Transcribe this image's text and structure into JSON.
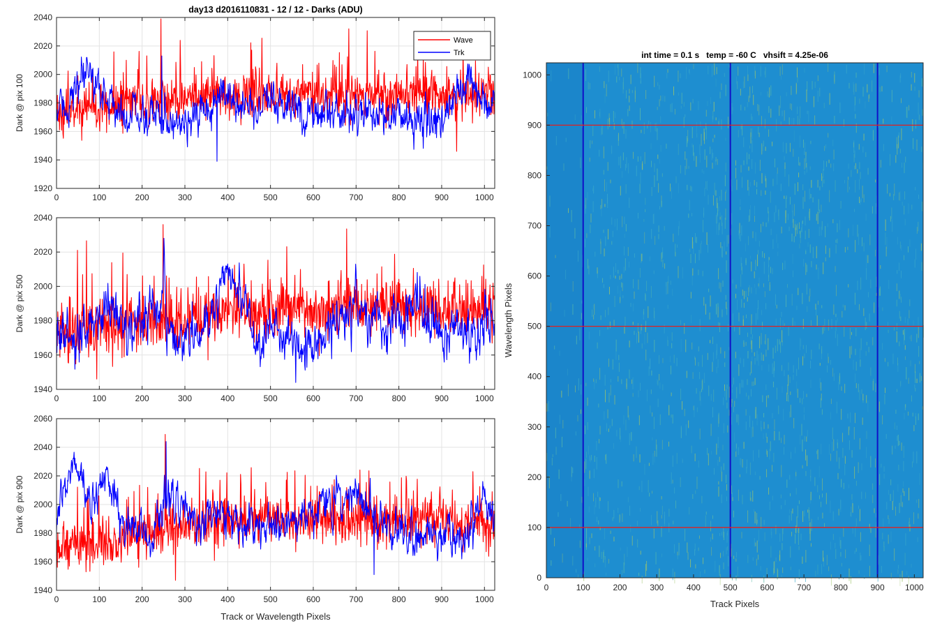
{
  "figure": {
    "suptitle": "day13 d2016110831 - 12 / 12 - Darks (ADU)"
  },
  "chart_data": [
    {
      "type": "line",
      "id": "pix100",
      "title": "day13 d2016110831 - 12 / 12 - Darks (ADU)",
      "xlabel": "",
      "ylabel": "Dark @ pix 100",
      "xlim": [
        0,
        1024
      ],
      "ylim": [
        1920,
        2040
      ],
      "xticks": [
        0,
        100,
        200,
        300,
        400,
        500,
        600,
        700,
        800,
        900,
        1000
      ],
      "yticks": [
        1920,
        1940,
        1960,
        1980,
        2000,
        2020,
        2040
      ],
      "grid": true,
      "legend": {
        "location": "top-right",
        "entries": [
          "Wave",
          "Trk"
        ]
      },
      "series": [
        {
          "name": "Wave",
          "color": "#ff0000",
          "n": 1024,
          "mean": 1983,
          "noise_sd": 12,
          "spike_max": 2039,
          "spike_min": 1946,
          "trend": [
            [
              0,
              1972
            ],
            [
              150,
              1980
            ],
            [
              400,
              1985
            ],
            [
              700,
              1986
            ],
            [
              1024,
              1986
            ]
          ]
        },
        {
          "name": "Trk",
          "color": "#0000ff",
          "n": 1024,
          "mean": 1973,
          "noise_sd": 6,
          "spike_max": 2013,
          "spike_min": 1939,
          "trend": [
            [
              0,
              1972
            ],
            [
              40,
              1985
            ],
            [
              80,
              2001
            ],
            [
              110,
              1985
            ],
            [
              160,
              1972
            ],
            [
              350,
              1968
            ],
            [
              390,
              1990
            ],
            [
              430,
              1978
            ],
            [
              700,
              1973
            ],
            [
              900,
              1968
            ],
            [
              960,
              1992
            ],
            [
              1000,
              1985
            ],
            [
              1024,
              1976
            ]
          ]
        }
      ]
    },
    {
      "type": "line",
      "id": "pix500",
      "xlabel": "",
      "ylabel": "Dark @ pix 500",
      "xlim": [
        0,
        1024
      ],
      "ylim": [
        1940,
        2040
      ],
      "xticks": [
        0,
        100,
        200,
        300,
        400,
        500,
        600,
        700,
        800,
        900,
        1000
      ],
      "yticks": [
        1940,
        1960,
        1980,
        2000,
        2020,
        2040
      ],
      "grid": true,
      "series": [
        {
          "name": "Wave",
          "color": "#ff0000",
          "n": 1024,
          "mean": 1982,
          "noise_sd": 12,
          "spike_max": 2036,
          "spike_min": 1946,
          "trend": [
            [
              0,
              1972
            ],
            [
              200,
              1978
            ],
            [
              400,
              1986
            ],
            [
              700,
              1988
            ],
            [
              1024,
              1986
            ]
          ]
        },
        {
          "name": "Trk",
          "color": "#0000ff",
          "n": 1024,
          "mean": 1975,
          "noise_sd": 6,
          "spike_max": 2028,
          "spike_min": 1944,
          "trend": [
            [
              0,
              1974
            ],
            [
              60,
              1965
            ],
            [
              120,
              1992
            ],
            [
              170,
              1972
            ],
            [
              240,
              1992
            ],
            [
              280,
              1968
            ],
            [
              360,
              1975
            ],
            [
              395,
              2015
            ],
            [
              430,
              1995
            ],
            [
              470,
              1972
            ],
            [
              600,
              1965
            ],
            [
              700,
              1990
            ],
            [
              770,
              1972
            ],
            [
              840,
              1990
            ],
            [
              900,
              1975
            ],
            [
              1024,
              1975
            ]
          ]
        }
      ]
    },
    {
      "type": "line",
      "id": "pix900",
      "xlabel": "Track or Wavelength Pixels",
      "ylabel": "Dark @ pix 900",
      "xlim": [
        0,
        1024
      ],
      "ylim": [
        1940,
        2060
      ],
      "xticks": [
        0,
        100,
        200,
        300,
        400,
        500,
        600,
        700,
        800,
        900,
        1000
      ],
      "yticks": [
        1940,
        1960,
        1980,
        2000,
        2020,
        2040,
        2060
      ],
      "grid": true,
      "series": [
        {
          "name": "Wave",
          "color": "#ff0000",
          "n": 1024,
          "mean": 1983,
          "noise_sd": 12,
          "spike_max": 2049,
          "spike_min": 1947,
          "trend": [
            [
              0,
              1970
            ],
            [
              200,
              1978
            ],
            [
              400,
              1990
            ],
            [
              700,
              1990
            ],
            [
              1024,
              1987
            ]
          ]
        },
        {
          "name": "Trk",
          "color": "#0000ff",
          "n": 1024,
          "mean": 1988,
          "noise_sd": 6,
          "spike_max": 2044,
          "spike_min": 1951,
          "trend": [
            [
              0,
              1985
            ],
            [
              40,
              2032
            ],
            [
              80,
              2000
            ],
            [
              115,
              2020
            ],
            [
              160,
              1985
            ],
            [
              220,
              1978
            ],
            [
              265,
              2010
            ],
            [
              320,
              1985
            ],
            [
              385,
              2000
            ],
            [
              430,
              1980
            ],
            [
              560,
              1990
            ],
            [
              700,
              2010
            ],
            [
              760,
              1985
            ],
            [
              850,
              1980
            ],
            [
              960,
              1975
            ],
            [
              1000,
              2005
            ],
            [
              1024,
              1985
            ]
          ]
        }
      ]
    },
    {
      "type": "heatmap",
      "id": "image",
      "title": "int time = 0.1 s   temp = -60 C   vhsift = 4.25e-06",
      "xlabel": "Track Pixels",
      "ylabel": "Wavelength Pixels",
      "xlim": [
        0,
        1024
      ],
      "ylim": [
        0,
        1024
      ],
      "xticks": [
        0,
        100,
        200,
        300,
        400,
        500,
        600,
        700,
        800,
        900,
        1000
      ],
      "yticks": [
        0,
        100,
        200,
        300,
        400,
        500,
        600,
        700,
        800,
        900,
        1000
      ],
      "colormap": "parula",
      "background_color": "#1e8ed0",
      "texture": "vertical streaks",
      "streak_colors": [
        "#3aa7c9",
        "#5bb9a8",
        "#9ec56a"
      ],
      "marker_lines": {
        "vertical_x": [
          100,
          500,
          900
        ],
        "vertical_color": "#1010c8",
        "horizontal_y": [
          100,
          500,
          900
        ],
        "horizontal_color": "#e02020"
      }
    }
  ]
}
